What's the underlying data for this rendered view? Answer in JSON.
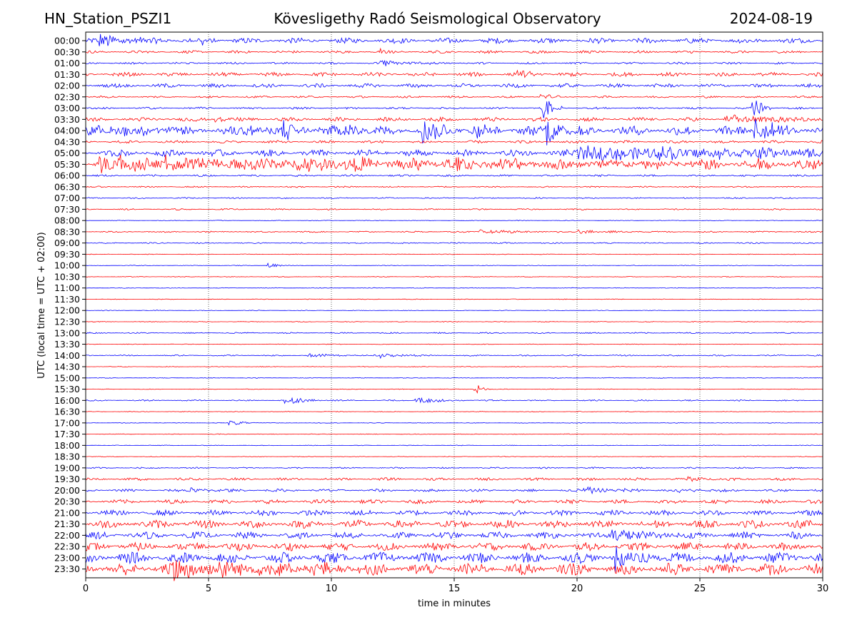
{
  "header": {
    "station": "HN_Station_PSZI1",
    "observatory": "Kövesligethy Radó Seismological Observatory",
    "date": "2024-08-19"
  },
  "chart_data": {
    "type": "line",
    "title": "Kövesligethy Radó Seismological Observatory",
    "xlabel": "time in minutes",
    "ylabel": "UTC (local time = UTC + 02:00)",
    "xlim": [
      0,
      30
    ],
    "xticks": [
      0,
      5,
      10,
      15,
      20,
      25,
      30
    ],
    "grid": "vertical dotted at 5-minute ticks",
    "series_colors": [
      "#0000ff",
      "#ff0000"
    ],
    "rows": [
      "00:00",
      "00:30",
      "01:00",
      "01:30",
      "02:00",
      "02:30",
      "03:00",
      "03:30",
      "04:00",
      "04:30",
      "05:00",
      "05:30",
      "06:00",
      "06:30",
      "07:00",
      "07:30",
      "08:00",
      "08:30",
      "09:00",
      "09:30",
      "10:00",
      "10:30",
      "11:00",
      "11:30",
      "12:00",
      "12:30",
      "13:00",
      "13:30",
      "14:00",
      "14:30",
      "15:00",
      "15:30",
      "16:00",
      "16:30",
      "17:00",
      "17:30",
      "18:00",
      "18:30",
      "19:00",
      "19:30",
      "20:00",
      "20:30",
      "21:00",
      "21:30",
      "22:00",
      "22:30",
      "23:00",
      "23:30"
    ],
    "noise": [
      4,
      2,
      1.5,
      3,
      3,
      1.5,
      1.5,
      3,
      7,
      2,
      5,
      8,
      1.5,
      1,
      1,
      1,
      0.5,
      1,
      1,
      0.5,
      0.5,
      0.5,
      0.5,
      0.5,
      0.5,
      0.5,
      1,
      0.5,
      1,
      0.5,
      0.5,
      0.5,
      1,
      0.5,
      0.5,
      0.5,
      0.5,
      0.5,
      1,
      2,
      2,
      3,
      4,
      6,
      5,
      6,
      8,
      9
    ],
    "events": [
      {
        "row": 0,
        "t": 0.5,
        "amp": 10,
        "dur": 1.5
      },
      {
        "row": 0,
        "t": 4.3,
        "amp": 10,
        "dur": 0.5
      },
      {
        "row": 1,
        "t": 12.0,
        "amp": 4,
        "dur": 0.3
      },
      {
        "row": 2,
        "t": 12.0,
        "amp": 4,
        "dur": 1.5
      },
      {
        "row": 3,
        "t": 17.4,
        "amp": 5,
        "dur": 0.8
      },
      {
        "row": 5,
        "t": 18.5,
        "amp": 4,
        "dur": 0.6
      },
      {
        "row": 6,
        "t": 18.6,
        "amp": 18,
        "dur": 0.4
      },
      {
        "row": 6,
        "t": 27.1,
        "amp": 20,
        "dur": 0.4
      },
      {
        "row": 7,
        "t": 5.2,
        "amp": 8,
        "dur": 0.3
      },
      {
        "row": 7,
        "t": 26.0,
        "amp": 5,
        "dur": 3.0
      },
      {
        "row": 8,
        "t": 0.5,
        "amp": 6,
        "dur": 3.0
      },
      {
        "row": 8,
        "t": 6.5,
        "amp": 12,
        "dur": 0.6
      },
      {
        "row": 8,
        "t": 8.0,
        "amp": 12,
        "dur": 0.8
      },
      {
        "row": 8,
        "t": 10.5,
        "amp": 14,
        "dur": 0.6
      },
      {
        "row": 8,
        "t": 13.7,
        "amp": 18,
        "dur": 0.8
      },
      {
        "row": 8,
        "t": 15.8,
        "amp": 12,
        "dur": 0.5
      },
      {
        "row": 8,
        "t": 18.7,
        "amp": 22,
        "dur": 0.6
      },
      {
        "row": 8,
        "t": 27.2,
        "amp": 22,
        "dur": 0.7
      },
      {
        "row": 10,
        "t": 20.0,
        "amp": 10,
        "dur": 10.0
      },
      {
        "row": 11,
        "t": 0.5,
        "amp": 10,
        "dur": 14.0
      },
      {
        "row": 17,
        "t": 16.0,
        "amp": 3,
        "dur": 2.0
      },
      {
        "row": 17,
        "t": 20.0,
        "amp": 3,
        "dur": 1.5
      },
      {
        "row": 20,
        "t": 7.3,
        "amp": 5,
        "dur": 0.4
      },
      {
        "row": 28,
        "t": 9.0,
        "amp": 3,
        "dur": 1.0
      },
      {
        "row": 28,
        "t": 12.0,
        "amp": 3,
        "dur": 1.0
      },
      {
        "row": 31,
        "t": 15.8,
        "amp": 10,
        "dur": 0.3
      },
      {
        "row": 32,
        "t": 8.1,
        "amp": 5,
        "dur": 1.0
      },
      {
        "row": 32,
        "t": 13.4,
        "amp": 5,
        "dur": 1.0
      },
      {
        "row": 34,
        "t": 5.8,
        "amp": 4,
        "dur": 0.6
      },
      {
        "row": 39,
        "t": 24.5,
        "amp": 5,
        "dur": 0.7
      },
      {
        "row": 40,
        "t": 4.1,
        "amp": 4,
        "dur": 1.2
      },
      {
        "row": 40,
        "t": 20.2,
        "amp": 5,
        "dur": 1.5
      },
      {
        "row": 40,
        "t": 24.0,
        "amp": 5,
        "dur": 1.0
      },
      {
        "row": 44,
        "t": 21.4,
        "amp": 10,
        "dur": 1.5
      },
      {
        "row": 46,
        "t": 21.5,
        "amp": 20,
        "dur": 1.0
      },
      {
        "row": 47,
        "t": 3.5,
        "amp": 14,
        "dur": 4.0
      }
    ]
  }
}
